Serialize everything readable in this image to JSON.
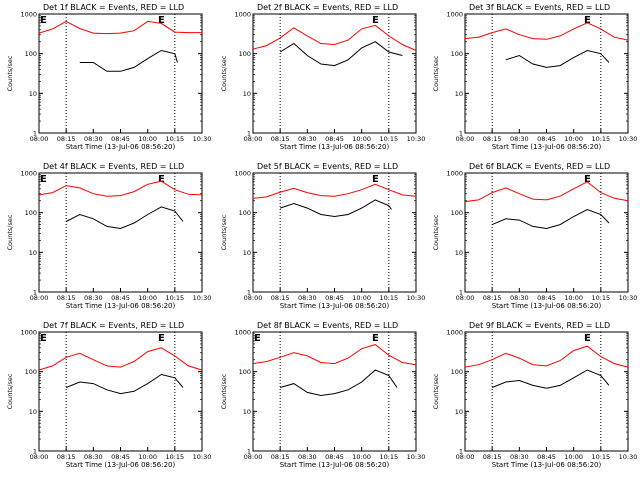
{
  "colors": {
    "events": "#000000",
    "lld": "#ff0000",
    "background": "#ffffff"
  },
  "chart_data": [
    {
      "type": "line",
      "title": "Det 1f BLACK = Events, RED = LLD",
      "xlabel": "Start Time (13-Jul-06 08:56:20)",
      "ylabel": "Counts/sec",
      "x_ticks": [
        "08:00",
        "08:15",
        "08:30",
        "08:45",
        "10:00",
        "10:15",
        "10:30"
      ],
      "y_ticks": [
        "1",
        "10",
        "100",
        "1000"
      ],
      "yscale": "log",
      "ylim": [
        1,
        1000
      ],
      "markers": {
        "left": "E",
        "right": "E"
      },
      "dotted_lines_at_tick": [
        1,
        5
      ],
      "series": [
        {
          "color": "#ff0000",
          "x": [
            0,
            0.5,
            1,
            1.5,
            2,
            2.5,
            3,
            3.5,
            4,
            4.5,
            5,
            5.5,
            6
          ],
          "y": [
            330,
            420,
            650,
            430,
            330,
            320,
            330,
            380,
            650,
            580,
            350,
            340,
            340
          ]
        },
        {
          "color": "#000000",
          "x": [
            1.5,
            2,
            2.5,
            3,
            3.5,
            4,
            4.5,
            5,
            5.1
          ],
          "y": [
            60,
            60,
            36,
            36,
            45,
            75,
            120,
            100,
            60
          ]
        }
      ]
    },
    {
      "type": "line",
      "title": "Det 2f BLACK = Events, RED = LLD",
      "xlabel": "Start Time (13-Jul-06 08:56:20)",
      "ylabel": "Counts/sec",
      "x_ticks": [
        "08:00",
        "08:15",
        "08:30",
        "08:45",
        "10:00",
        "10:15",
        "10:30"
      ],
      "y_ticks": [
        "1",
        "10",
        "100",
        "1000"
      ],
      "yscale": "log",
      "ylim": [
        1,
        1000
      ],
      "markers": {
        "left": "",
        "right": "E"
      },
      "dotted_lines_at_tick": [
        1,
        5
      ],
      "series": [
        {
          "color": "#ff0000",
          "x": [
            0,
            0.5,
            1,
            1.5,
            2,
            2.5,
            3,
            3.5,
            4,
            4.5,
            5,
            5.5,
            6
          ],
          "y": [
            130,
            160,
            250,
            450,
            280,
            180,
            170,
            220,
            420,
            520,
            280,
            170,
            120
          ]
        },
        {
          "color": "#000000",
          "x": [
            1,
            1.5,
            2,
            2.5,
            3,
            3.5,
            4,
            4.5,
            5,
            5.5
          ],
          "y": [
            110,
            180,
            90,
            55,
            50,
            70,
            140,
            200,
            110,
            90
          ]
        }
      ]
    },
    {
      "type": "line",
      "title": "Det 3f BLACK = Events, RED = LLD",
      "xlabel": "Start Time (13-Jul-06 08:56:20)",
      "ylabel": "Counts/sec",
      "x_ticks": [
        "08:00",
        "08:15",
        "08:30",
        "08:45",
        "10:00",
        "10:15",
        "10:30"
      ],
      "y_ticks": [
        "1",
        "10",
        "100",
        "1000"
      ],
      "yscale": "log",
      "ylim": [
        1,
        1000
      ],
      "markers": {
        "left": "",
        "right": "E"
      },
      "dotted_lines_at_tick": [
        1,
        5
      ],
      "series": [
        {
          "color": "#ff0000",
          "x": [
            0,
            0.5,
            1,
            1.5,
            2,
            2.5,
            3,
            3.5,
            4,
            4.5,
            5,
            5.5,
            6
          ],
          "y": [
            240,
            260,
            340,
            420,
            300,
            240,
            230,
            280,
            420,
            600,
            420,
            260,
            220
          ]
        },
        {
          "color": "#000000",
          "x": [
            1.5,
            2,
            2.5,
            3,
            3.5,
            4,
            4.5,
            5,
            5.3
          ],
          "y": [
            70,
            90,
            55,
            45,
            50,
            80,
            120,
            100,
            60
          ]
        }
      ]
    },
    {
      "type": "line",
      "title": "Det 4f BLACK = Events, RED = LLD",
      "xlabel": "Start Time (13-Jul-06 08:56:20)",
      "ylabel": "Counts/sec",
      "x_ticks": [
        "08:00",
        "08:15",
        "08:30",
        "08:45",
        "10:00",
        "10:15",
        "10:30"
      ],
      "y_ticks": [
        "1",
        "10",
        "100",
        "1000"
      ],
      "yscale": "log",
      "ylim": [
        1,
        1000
      ],
      "markers": {
        "left": "E",
        "right": "E"
      },
      "dotted_lines_at_tick": [
        1,
        5
      ],
      "series": [
        {
          "color": "#ff0000",
          "x": [
            0,
            0.5,
            1,
            1.5,
            2,
            2.5,
            3,
            3.5,
            4,
            4.5,
            5,
            5.5,
            6
          ],
          "y": [
            280,
            320,
            480,
            420,
            300,
            260,
            270,
            340,
            520,
            620,
            380,
            290,
            280
          ]
        },
        {
          "color": "#000000",
          "x": [
            1,
            1.5,
            2,
            2.5,
            3,
            3.5,
            4,
            4.5,
            5,
            5.3
          ],
          "y": [
            60,
            90,
            70,
            45,
            40,
            55,
            90,
            140,
            110,
            60
          ]
        }
      ]
    },
    {
      "type": "line",
      "title": "Det 5f BLACK = Events, RED = LLD",
      "xlabel": "Start Time (13-Jul-06 08:56:20)",
      "ylabel": "Counts/sec",
      "x_ticks": [
        "08:00",
        "08:15",
        "08:30",
        "08:45",
        "10:00",
        "10:15",
        "10:30"
      ],
      "y_ticks": [
        "1",
        "10",
        "100",
        "1000"
      ],
      "yscale": "log",
      "ylim": [
        1,
        1000
      ],
      "markers": {
        "left": "",
        "right": "E"
      },
      "dotted_lines_at_tick": [
        1,
        5
      ],
      "series": [
        {
          "color": "#ff0000",
          "x": [
            0,
            0.5,
            1,
            1.5,
            2,
            2.5,
            3,
            3.5,
            4,
            4.5,
            5,
            5.5,
            6
          ],
          "y": [
            230,
            250,
            330,
            410,
            320,
            270,
            260,
            300,
            380,
            520,
            380,
            280,
            260
          ]
        },
        {
          "color": "#000000",
          "x": [
            1,
            1.5,
            2,
            2.5,
            3,
            3.5,
            4,
            4.5,
            5,
            5.1
          ],
          "y": [
            130,
            170,
            130,
            90,
            80,
            90,
            130,
            210,
            150,
            120
          ]
        }
      ]
    },
    {
      "type": "line",
      "title": "Det 6f BLACK = Events, RED = LLD",
      "xlabel": "Start Time (13-Jul-06 08:56:20)",
      "ylabel": "Counts/sec",
      "x_ticks": [
        "08:00",
        "08:15",
        "08:30",
        "08:45",
        "10:00",
        "10:15",
        "10:30"
      ],
      "y_ticks": [
        "1",
        "10",
        "100",
        "1000"
      ],
      "yscale": "log",
      "ylim": [
        1,
        1000
      ],
      "markers": {
        "left": "",
        "right": "E"
      },
      "dotted_lines_at_tick": [
        1,
        5
      ],
      "series": [
        {
          "color": "#ff0000",
          "x": [
            0,
            0.5,
            1,
            1.5,
            2,
            2.5,
            3,
            3.5,
            4,
            4.5,
            5,
            5.5,
            6
          ],
          "y": [
            190,
            210,
            320,
            420,
            300,
            220,
            210,
            260,
            400,
            600,
            320,
            230,
            200
          ]
        },
        {
          "color": "#000000",
          "x": [
            1,
            1.5,
            2,
            2.5,
            3,
            3.5,
            4,
            4.5,
            5,
            5.3
          ],
          "y": [
            50,
            70,
            65,
            45,
            40,
            50,
            80,
            120,
            90,
            55
          ]
        }
      ]
    },
    {
      "type": "line",
      "title": "Det 7f BLACK = Events, RED = LLD",
      "xlabel": "Start Time (13-Jul-06 08:56:20)",
      "ylabel": "Counts/sec",
      "x_ticks": [
        "08:00",
        "08:15",
        "08:30",
        "08:45",
        "10:00",
        "10:15",
        "10:30"
      ],
      "y_ticks": [
        "1",
        "10",
        "100",
        "1000"
      ],
      "yscale": "log",
      "ylim": [
        1,
        1000
      ],
      "markers": {
        "left": "E",
        "right": "E"
      },
      "dotted_lines_at_tick": [
        1,
        5
      ],
      "series": [
        {
          "color": "#ff0000",
          "x": [
            0,
            0.5,
            1,
            1.5,
            2,
            2.5,
            3,
            3.5,
            4,
            4.5,
            5,
            5.5,
            6
          ],
          "y": [
            110,
            140,
            230,
            290,
            200,
            140,
            130,
            180,
            320,
            400,
            250,
            140,
            110
          ]
        },
        {
          "color": "#000000",
          "x": [
            1,
            1.5,
            2,
            2.5,
            3,
            3.5,
            4,
            4.5,
            5,
            5.3
          ],
          "y": [
            40,
            55,
            50,
            35,
            28,
            32,
            50,
            85,
            70,
            40
          ]
        }
      ]
    },
    {
      "type": "line",
      "title": "Det 8f BLACK = Events, RED = LLD",
      "xlabel": "Start Time (13-Jul-06 08:56:20)",
      "ylabel": "Counts/sec",
      "x_ticks": [
        "08:00",
        "08:15",
        "08:30",
        "08:45",
        "10:00",
        "10:15",
        "10:30"
      ],
      "y_ticks": [
        "1",
        "10",
        "100",
        "1000"
      ],
      "yscale": "log",
      "ylim": [
        1,
        1000
      ],
      "markers": {
        "left": "E",
        "right": "E"
      },
      "dotted_lines_at_tick": [
        1,
        5
      ],
      "series": [
        {
          "color": "#ff0000",
          "x": [
            0,
            0.5,
            1,
            1.5,
            2,
            2.5,
            3,
            3.5,
            4,
            4.5,
            5,
            5.5,
            6
          ],
          "y": [
            160,
            180,
            230,
            300,
            250,
            170,
            160,
            220,
            380,
            480,
            260,
            170,
            150
          ]
        },
        {
          "color": "#000000",
          "x": [
            1,
            1.5,
            2,
            2.5,
            3,
            3.5,
            4,
            4.5,
            5,
            5.3
          ],
          "y": [
            40,
            50,
            30,
            25,
            28,
            35,
            55,
            110,
            80,
            40
          ]
        }
      ]
    },
    {
      "type": "line",
      "title": "Det 9f BLACK = Events, RED = LLD",
      "xlabel": "Start Time (13-Jul-06 08:56:20)",
      "ylabel": "Counts/sec",
      "x_ticks": [
        "08:00",
        "08:15",
        "08:30",
        "08:45",
        "10:00",
        "10:15",
        "10:30"
      ],
      "y_ticks": [
        "1",
        "10",
        "100",
        "1000"
      ],
      "yscale": "log",
      "ylim": [
        1,
        1000
      ],
      "markers": {
        "left": "",
        "right": "E"
      },
      "dotted_lines_at_tick": [
        1,
        5
      ],
      "series": [
        {
          "color": "#ff0000",
          "x": [
            0,
            0.5,
            1,
            1.5,
            2,
            2.5,
            3,
            3.5,
            4,
            4.5,
            5,
            5.5,
            6
          ],
          "y": [
            130,
            150,
            200,
            290,
            220,
            150,
            140,
            190,
            340,
            440,
            240,
            160,
            130
          ]
        },
        {
          "color": "#000000",
          "x": [
            1,
            1.5,
            2,
            2.5,
            3,
            3.5,
            4,
            4.5,
            5,
            5.3
          ],
          "y": [
            40,
            55,
            60,
            45,
            38,
            45,
            70,
            110,
            80,
            45
          ]
        }
      ]
    }
  ]
}
